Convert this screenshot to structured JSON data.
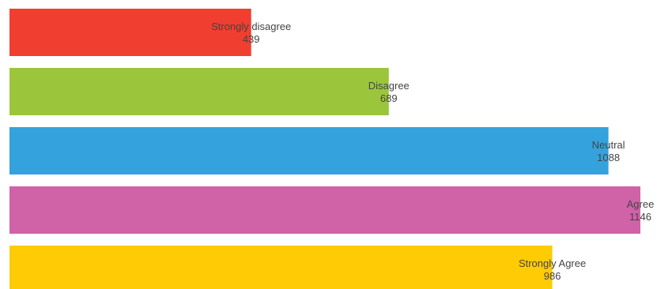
{
  "chart_data": {
    "type": "bar",
    "orientation": "horizontal",
    "categories": [
      "Strongly disagree",
      "Disagree",
      "Neutral",
      "Agree",
      "Strongly Agree"
    ],
    "values": [
      439,
      689,
      1088,
      1146,
      986
    ],
    "data_labels": [
      "439",
      "689",
      "1088",
      "1146",
      "986"
    ],
    "colors": [
      "#f03e30",
      "#9bc63c",
      "#34a2dc",
      "#d062a8",
      "#ffcb05"
    ],
    "xlim": [
      0,
      1146
    ],
    "grid": false,
    "legend": "none"
  }
}
